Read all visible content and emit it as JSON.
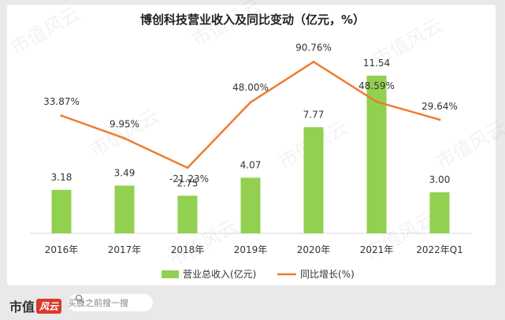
{
  "chart_data": {
    "type": "bar+line",
    "title": "博创科技营业收入及同比变动（亿元，%）",
    "categories": [
      "2016年",
      "2017年",
      "2018年",
      "2019年",
      "2020年",
      "2021年",
      "2022年Q1"
    ],
    "bar_series": {
      "name": "营业总收入(亿元)",
      "color": "#92d050",
      "values": [
        3.18,
        3.49,
        2.75,
        4.07,
        7.77,
        11.54,
        3.0
      ],
      "labels": [
        "3.18",
        "3.49",
        "2.75",
        "4.07",
        "7.77",
        "11.54",
        "3.00"
      ]
    },
    "line_series": {
      "name": "同比增长(%)",
      "color": "#ed7d31",
      "values": [
        33.87,
        9.95,
        -21.23,
        48.0,
        90.76,
        48.59,
        29.64
      ],
      "labels": [
        "33.87%",
        "9.95%",
        "-21.23%",
        "48.00%",
        "90.76%",
        "48.59%",
        "29.64%"
      ]
    },
    "legend_position": "bottom",
    "grid": false
  },
  "watermark": {
    "text": "市值风云"
  },
  "footer": {
    "brand_text": "市值",
    "brand_mark": "风云",
    "search_icon": "search-icon",
    "search_text": "买股之前搜一搜"
  }
}
